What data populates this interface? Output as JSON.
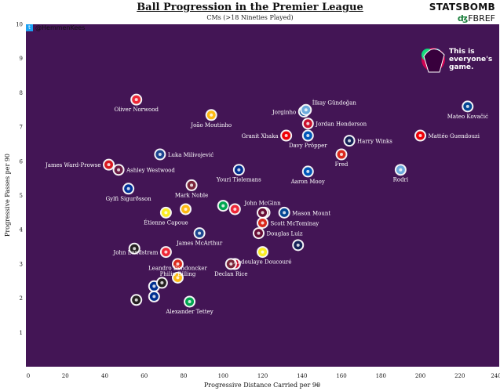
{
  "header": {
    "title": "Ball Progression in the Premier League",
    "subtitle": "CMs (>18 Nineties Played)",
    "twitter_handle": "@HemmenKees",
    "statsbomb_logo": "STATSBOMB",
    "fbref_logo": "FBREF",
    "pl_logo_text": [
      "This is",
      "everyone's",
      "game."
    ]
  },
  "colors": {
    "plot_bg": "#431555",
    "tick_text": "#111111",
    "point_label": "#ffffff"
  },
  "chart_data": {
    "type": "scatter",
    "title": "Ball Progression in the Premier League",
    "subtitle": "CMs (>18 Nineties Played)",
    "xlabel": "Progressive Distance Carried per 90",
    "ylabel": "Progressive Passes per 90",
    "xlim": [
      0,
      240
    ],
    "ylim": [
      0,
      10
    ],
    "xticks": [
      0,
      20,
      40,
      60,
      80,
      100,
      120,
      140,
      160,
      180,
      200,
      220,
      240
    ],
    "yticks": [
      1,
      2,
      3,
      4,
      5,
      6,
      7,
      8,
      9,
      10
    ],
    "grid": false,
    "points": [
      {
        "label": "Oliver Norwood",
        "x": 56,
        "y": 7.8,
        "club": "Sheffield United",
        "color": "#ee2737",
        "label_pos": "below"
      },
      {
        "label": "João Moutinho",
        "x": 94,
        "y": 7.35,
        "club": "Wolves",
        "color": "#fdb913",
        "label_pos": "below"
      },
      {
        "label": "Jorginho",
        "x": 141,
        "y": 7.45,
        "club": "Chelsea",
        "color": "#034694",
        "label_pos": "left"
      },
      {
        "label": "İlkay Gündoğan",
        "x": 142,
        "y": 7.5,
        "club": "Manchester City",
        "color": "#6cabdd",
        "label_pos": "above-right"
      },
      {
        "label": "Jordan Henderson",
        "x": 143,
        "y": 7.1,
        "club": "Liverpool",
        "color": "#c8102e",
        "label_pos": "right"
      },
      {
        "label": "Mateo Kovačić",
        "x": 224,
        "y": 7.6,
        "club": "Chelsea",
        "color": "#034694",
        "label_pos": "below"
      },
      {
        "label": "Granit Xhaka",
        "x": 132,
        "y": 6.75,
        "club": "Arsenal",
        "color": "#ef0107",
        "label_pos": "left"
      },
      {
        "label": "Davy Pröpper",
        "x": 143,
        "y": 6.75,
        "club": "Brighton",
        "color": "#0057b8",
        "label_pos": "below"
      },
      {
        "label": "Harry Winks",
        "x": 164,
        "y": 6.6,
        "club": "Tottenham",
        "color": "#132257",
        "label_pos": "right"
      },
      {
        "label": "Mattéo Guendouzi",
        "x": 200,
        "y": 6.75,
        "club": "Arsenal",
        "color": "#ef0107",
        "label_pos": "right"
      },
      {
        "label": "Luka Milivojević",
        "x": 68,
        "y": 6.2,
        "club": "Crystal Palace",
        "color": "#1b458f",
        "label_pos": "right"
      },
      {
        "label": "Fred",
        "x": 160,
        "y": 6.2,
        "club": "Manchester United",
        "color": "#da291c",
        "label_pos": "below"
      },
      {
        "label": "James Ward-Prowse",
        "x": 42,
        "y": 5.9,
        "club": "Southampton",
        "color": "#d71920",
        "label_pos": "left"
      },
      {
        "label": "Ashley Westwood",
        "x": 47,
        "y": 5.75,
        "club": "Burnley",
        "color": "#6c1d45",
        "label_pos": "right"
      },
      {
        "label": "Youri Tielemans",
        "x": 108,
        "y": 5.75,
        "club": "Leicester",
        "color": "#003090",
        "label_pos": "below"
      },
      {
        "label": "Rodri",
        "x": 190,
        "y": 5.75,
        "club": "Manchester City",
        "color": "#6cabdd",
        "label_pos": "below"
      },
      {
        "label": "Aaron Mooy",
        "x": 143,
        "y": 5.7,
        "club": "Brighton",
        "color": "#0057b8",
        "label_pos": "below"
      },
      {
        "label": "Gylfi Sigurðsson",
        "x": 52,
        "y": 5.2,
        "club": "Everton",
        "color": "#003399",
        "label_pos": "below"
      },
      {
        "label": "Mark Noble",
        "x": 84,
        "y": 5.3,
        "club": "West Ham",
        "color": "#7a263a",
        "label_pos": "below"
      },
      {
        "label": "Étienne Capoue",
        "x": 71,
        "y": 4.5,
        "club": "Watford",
        "color": "#fbee23",
        "label_pos": "below"
      },
      {
        "label": "John McGinn",
        "x": 120,
        "y": 4.5,
        "club": "Aston Villa",
        "color": "#670e36",
        "label_pos": "above"
      },
      {
        "label": "Mason Mount",
        "x": 131,
        "y": 4.5,
        "club": "Chelsea",
        "color": "#034694",
        "label_pos": "right"
      },
      {
        "label": "Scott McTominay",
        "x": 120,
        "y": 4.2,
        "club": "Manchester United",
        "color": "#da291c",
        "label_pos": "right"
      },
      {
        "label": "Douglas Luiz",
        "x": 118,
        "y": 3.9,
        "club": "Aston Villa",
        "color": "#670e36",
        "label_pos": "right"
      },
      {
        "label": "James McArthur",
        "x": 88,
        "y": 3.9,
        "club": "Crystal Palace",
        "color": "#1b458f",
        "label_pos": "below"
      },
      {
        "label": "John Lundstram",
        "x": 71,
        "y": 3.35,
        "club": "Sheffield United",
        "color": "#ee2737",
        "label_pos": "left"
      },
      {
        "label": "Philip Billing",
        "x": 77,
        "y": 3.0,
        "club": "Bournemouth",
        "color": "#da291c",
        "label_pos": "below"
      },
      {
        "label": "Declan Rice",
        "x": 104,
        "y": 3.0,
        "club": "West Ham",
        "color": "#7a263a",
        "label_pos": "below"
      },
      {
        "label": "Abdoulaye Doucouré",
        "x": 120,
        "y": 3.35,
        "club": "Watford",
        "color": "#fbee23",
        "label_pos": "below"
      },
      {
        "label": "Leandro Dendoncker",
        "x": 77,
        "y": 2.6,
        "club": "Wolves",
        "color": "#fdb913",
        "label_pos": "above"
      },
      {
        "label": "Alexander Tettey",
        "x": 83,
        "y": 1.9,
        "club": "Norwich",
        "color": "#00a650",
        "label_pos": "below"
      }
    ],
    "unlabeled_points": [
      {
        "x": 106,
        "y": 3.0,
        "club": "Liverpool",
        "color": "#c8102e"
      },
      {
        "x": 100,
        "y": 4.7,
        "club": "Norwich",
        "color": "#00a650"
      },
      {
        "x": 106,
        "y": 4.6,
        "club": "Sheffield United",
        "color": "#ee2737"
      },
      {
        "x": 81,
        "y": 4.6,
        "club": "Wolves",
        "color": "#fdb913"
      },
      {
        "x": 121,
        "y": 4.5,
        "club": "Aston Villa",
        "color": "#670e36"
      },
      {
        "x": 138,
        "y": 3.55,
        "club": "Tottenham",
        "color": "#132257"
      },
      {
        "x": 65,
        "y": 2.35,
        "club": "Leicester",
        "color": "#003090"
      },
      {
        "x": 69,
        "y": 2.45,
        "club": "Newcastle",
        "color": "#241f20"
      },
      {
        "x": 65,
        "y": 2.05,
        "club": "Leicester",
        "color": "#003090"
      },
      {
        "x": 55,
        "y": 3.45,
        "club": "Newcastle",
        "color": "#241f20"
      },
      {
        "x": 56,
        "y": 1.95,
        "club": "Newcastle",
        "color": "#241f20"
      }
    ]
  }
}
